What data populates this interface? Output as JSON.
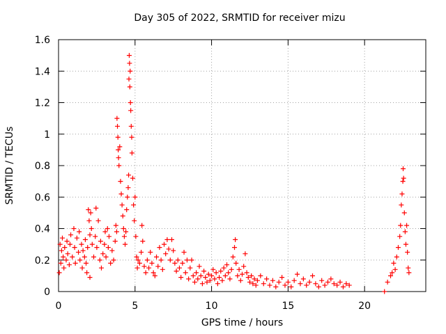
{
  "chart_data": {
    "type": "scatter",
    "title": "Day 305 of 2022, SRMTID for receiver mizu",
    "xlabel": "GPS time / hours",
    "ylabel": "SRMTID / TECUs",
    "xlim": [
      0,
      24
    ],
    "ylim": [
      0,
      1.6
    ],
    "xticks": [
      0,
      5,
      10,
      15,
      20
    ],
    "xtick_labels": [
      "0",
      "5",
      "10",
      "15",
      "20"
    ],
    "yticks": [
      0,
      0.2,
      0.4,
      0.6,
      0.8,
      1.0,
      1.2,
      1.4,
      1.6
    ],
    "ytick_labels": [
      "0",
      "0.2",
      "0.4",
      "0.6",
      "0.8",
      "1",
      "1.2",
      "1.4",
      "1.6"
    ],
    "grid": true,
    "marker": "+",
    "color": "#ff0000",
    "series": [
      {
        "name": "SRMTID",
        "points": [
          [
            0.05,
            0.12
          ],
          [
            0.1,
            0.3
          ],
          [
            0.15,
            0.18
          ],
          [
            0.2,
            0.26
          ],
          [
            0.25,
            0.34
          ],
          [
            0.3,
            0.22
          ],
          [
            0.35,
            0.15
          ],
          [
            0.4,
            0.28
          ],
          [
            0.5,
            0.2
          ],
          [
            0.55,
            0.32
          ],
          [
            0.6,
            0.24
          ],
          [
            0.7,
            0.17
          ],
          [
            0.75,
            0.3
          ],
          [
            0.8,
            0.36
          ],
          [
            0.9,
            0.22
          ],
          [
            1.0,
            0.4
          ],
          [
            1.05,
            0.28
          ],
          [
            1.1,
            0.18
          ],
          [
            1.2,
            0.34
          ],
          [
            1.3,
            0.25
          ],
          [
            1.35,
            0.38
          ],
          [
            1.4,
            0.2
          ],
          [
            1.5,
            0.3
          ],
          [
            1.55,
            0.15
          ],
          [
            1.6,
            0.26
          ],
          [
            1.7,
            0.22
          ],
          [
            1.75,
            0.33
          ],
          [
            1.8,
            0.18
          ],
          [
            1.85,
            0.12
          ],
          [
            1.9,
            0.28
          ],
          [
            1.95,
            0.52
          ],
          [
            2.0,
            0.45
          ],
          [
            2.05,
            0.36
          ],
          [
            2.1,
            0.5
          ],
          [
            2.15,
            0.4
          ],
          [
            2.2,
            0.3
          ],
          [
            2.05,
            0.09
          ],
          [
            2.3,
            0.22
          ],
          [
            2.4,
            0.35
          ],
          [
            2.45,
            0.53
          ],
          [
            2.5,
            0.28
          ],
          [
            2.6,
            0.45
          ],
          [
            2.7,
            0.2
          ],
          [
            2.75,
            0.32
          ],
          [
            2.8,
            0.15
          ],
          [
            2.9,
            0.24
          ],
          [
            3.0,
            0.3
          ],
          [
            3.05,
            0.38
          ],
          [
            3.1,
            0.22
          ],
          [
            3.2,
            0.4
          ],
          [
            3.25,
            0.28
          ],
          [
            3.3,
            0.35
          ],
          [
            3.4,
            0.18
          ],
          [
            3.5,
            0.26
          ],
          [
            3.6,
            0.2
          ],
          [
            3.7,
            0.32
          ],
          [
            3.75,
            0.42
          ],
          [
            3.8,
            0.38
          ],
          [
            3.82,
            1.1
          ],
          [
            3.85,
            1.05
          ],
          [
            3.88,
            0.98
          ],
          [
            3.9,
            0.9
          ],
          [
            3.92,
            0.85
          ],
          [
            3.95,
            0.8
          ],
          [
            4.0,
            0.92
          ],
          [
            4.05,
            0.7
          ],
          [
            4.1,
            0.62
          ],
          [
            4.15,
            0.55
          ],
          [
            4.2,
            0.48
          ],
          [
            4.25,
            0.4
          ],
          [
            4.3,
            0.35
          ],
          [
            4.35,
            0.3
          ],
          [
            4.4,
            0.38
          ],
          [
            4.45,
            0.52
          ],
          [
            4.5,
            0.6
          ],
          [
            4.55,
            0.66
          ],
          [
            4.58,
            0.74
          ],
          [
            4.6,
            1.35
          ],
          [
            4.62,
            1.5
          ],
          [
            4.64,
            1.45
          ],
          [
            4.66,
            1.3
          ],
          [
            4.68,
            1.4
          ],
          [
            4.7,
            1.2
          ],
          [
            4.72,
            1.15
          ],
          [
            4.75,
            1.05
          ],
          [
            4.78,
            0.98
          ],
          [
            4.8,
            0.88
          ],
          [
            4.85,
            0.72
          ],
          [
            4.9,
            0.55
          ],
          [
            4.95,
            0.45
          ],
          [
            5.0,
            0.6
          ],
          [
            5.05,
            0.35
          ],
          [
            5.1,
            0.22
          ],
          [
            5.15,
            0.15
          ],
          [
            5.2,
            0.2
          ],
          [
            5.3,
            0.18
          ],
          [
            5.4,
            0.25
          ],
          [
            5.45,
            0.42
          ],
          [
            5.5,
            0.32
          ],
          [
            5.6,
            0.16
          ],
          [
            5.7,
            0.12
          ],
          [
            5.8,
            0.2
          ],
          [
            5.9,
            0.15
          ],
          [
            6.0,
            0.25
          ],
          [
            6.1,
            0.18
          ],
          [
            6.2,
            0.12
          ],
          [
            6.3,
            0.1
          ],
          [
            6.4,
            0.22
          ],
          [
            6.5,
            0.16
          ],
          [
            6.6,
            0.28
          ],
          [
            6.7,
            0.2
          ],
          [
            6.8,
            0.14
          ],
          [
            6.9,
            0.3
          ],
          [
            7.0,
            0.24
          ],
          [
            7.1,
            0.33
          ],
          [
            7.2,
            0.27
          ],
          [
            7.3,
            0.2
          ],
          [
            7.4,
            0.33
          ],
          [
            7.5,
            0.26
          ],
          [
            7.6,
            0.18
          ],
          [
            7.7,
            0.13
          ],
          [
            7.8,
            0.2
          ],
          [
            7.9,
            0.15
          ],
          [
            8.0,
            0.09
          ],
          [
            8.1,
            0.18
          ],
          [
            8.2,
            0.25
          ],
          [
            8.3,
            0.12
          ],
          [
            8.4,
            0.2
          ],
          [
            8.5,
            0.08
          ],
          [
            8.6,
            0.15
          ],
          [
            8.7,
            0.2
          ],
          [
            8.8,
            0.1
          ],
          [
            8.9,
            0.06
          ],
          [
            9.0,
            0.12
          ],
          [
            9.1,
            0.08
          ],
          [
            9.2,
            0.16
          ],
          [
            9.3,
            0.1
          ],
          [
            9.4,
            0.05
          ],
          [
            9.5,
            0.13
          ],
          [
            9.6,
            0.09
          ],
          [
            9.7,
            0.06
          ],
          [
            9.8,
            0.11
          ],
          [
            9.9,
            0.07
          ],
          [
            10.0,
            0.1
          ],
          [
            10.1,
            0.14
          ],
          [
            10.2,
            0.08
          ],
          [
            10.3,
            0.12
          ],
          [
            10.4,
            0.05
          ],
          [
            10.5,
            0.09
          ],
          [
            10.6,
            0.13
          ],
          [
            10.7,
            0.07
          ],
          [
            10.8,
            0.15
          ],
          [
            10.9,
            0.1
          ],
          [
            11.0,
            0.17
          ],
          [
            11.1,
            0.12
          ],
          [
            11.2,
            0.08
          ],
          [
            11.3,
            0.14
          ],
          [
            11.4,
            0.22
          ],
          [
            11.5,
            0.28
          ],
          [
            11.55,
            0.33
          ],
          [
            11.6,
            0.18
          ],
          [
            11.7,
            0.1
          ],
          [
            11.8,
            0.14
          ],
          [
            11.9,
            0.07
          ],
          [
            12.0,
            0.11
          ],
          [
            12.1,
            0.16
          ],
          [
            12.2,
            0.24
          ],
          [
            12.3,
            0.12
          ],
          [
            12.4,
            0.09
          ],
          [
            12.5,
            0.06
          ],
          [
            12.6,
            0.1
          ],
          [
            12.7,
            0.05
          ],
          [
            12.8,
            0.08
          ],
          [
            12.9,
            0.04
          ],
          [
            13.0,
            0.07
          ],
          [
            13.2,
            0.1
          ],
          [
            13.4,
            0.05
          ],
          [
            13.6,
            0.08
          ],
          [
            13.8,
            0.04
          ],
          [
            14.0,
            0.07
          ],
          [
            14.2,
            0.03
          ],
          [
            14.4,
            0.06
          ],
          [
            14.6,
            0.09
          ],
          [
            14.8,
            0.04
          ],
          [
            15.0,
            0.06
          ],
          [
            15.2,
            0.03
          ],
          [
            15.4,
            0.07
          ],
          [
            15.6,
            0.11
          ],
          [
            15.8,
            0.05
          ],
          [
            16.0,
            0.08
          ],
          [
            16.2,
            0.04
          ],
          [
            16.4,
            0.06
          ],
          [
            16.6,
            0.1
          ],
          [
            16.8,
            0.05
          ],
          [
            17.0,
            0.03
          ],
          [
            17.2,
            0.07
          ],
          [
            17.4,
            0.04
          ],
          [
            17.6,
            0.06
          ],
          [
            17.8,
            0.08
          ],
          [
            18.0,
            0.05
          ],
          [
            18.2,
            0.04
          ],
          [
            18.4,
            0.06
          ],
          [
            18.6,
            0.03
          ],
          [
            18.8,
            0.05
          ],
          [
            19.0,
            0.04
          ],
          [
            21.3,
            0.0
          ],
          [
            21.5,
            0.06
          ],
          [
            21.7,
            0.1
          ],
          [
            21.8,
            0.12
          ],
          [
            21.9,
            0.18
          ],
          [
            22.0,
            0.14
          ],
          [
            22.1,
            0.22
          ],
          [
            22.2,
            0.28
          ],
          [
            22.3,
            0.35
          ],
          [
            22.35,
            0.42
          ],
          [
            22.4,
            0.55
          ],
          [
            22.45,
            0.62
          ],
          [
            22.5,
            0.7
          ],
          [
            22.52,
            0.78
          ],
          [
            22.55,
            0.72
          ],
          [
            22.6,
            0.5
          ],
          [
            22.65,
            0.38
          ],
          [
            22.7,
            0.3
          ],
          [
            22.75,
            0.42
          ],
          [
            22.8,
            0.25
          ],
          [
            22.85,
            0.15
          ],
          [
            22.9,
            0.12
          ]
        ]
      }
    ]
  }
}
